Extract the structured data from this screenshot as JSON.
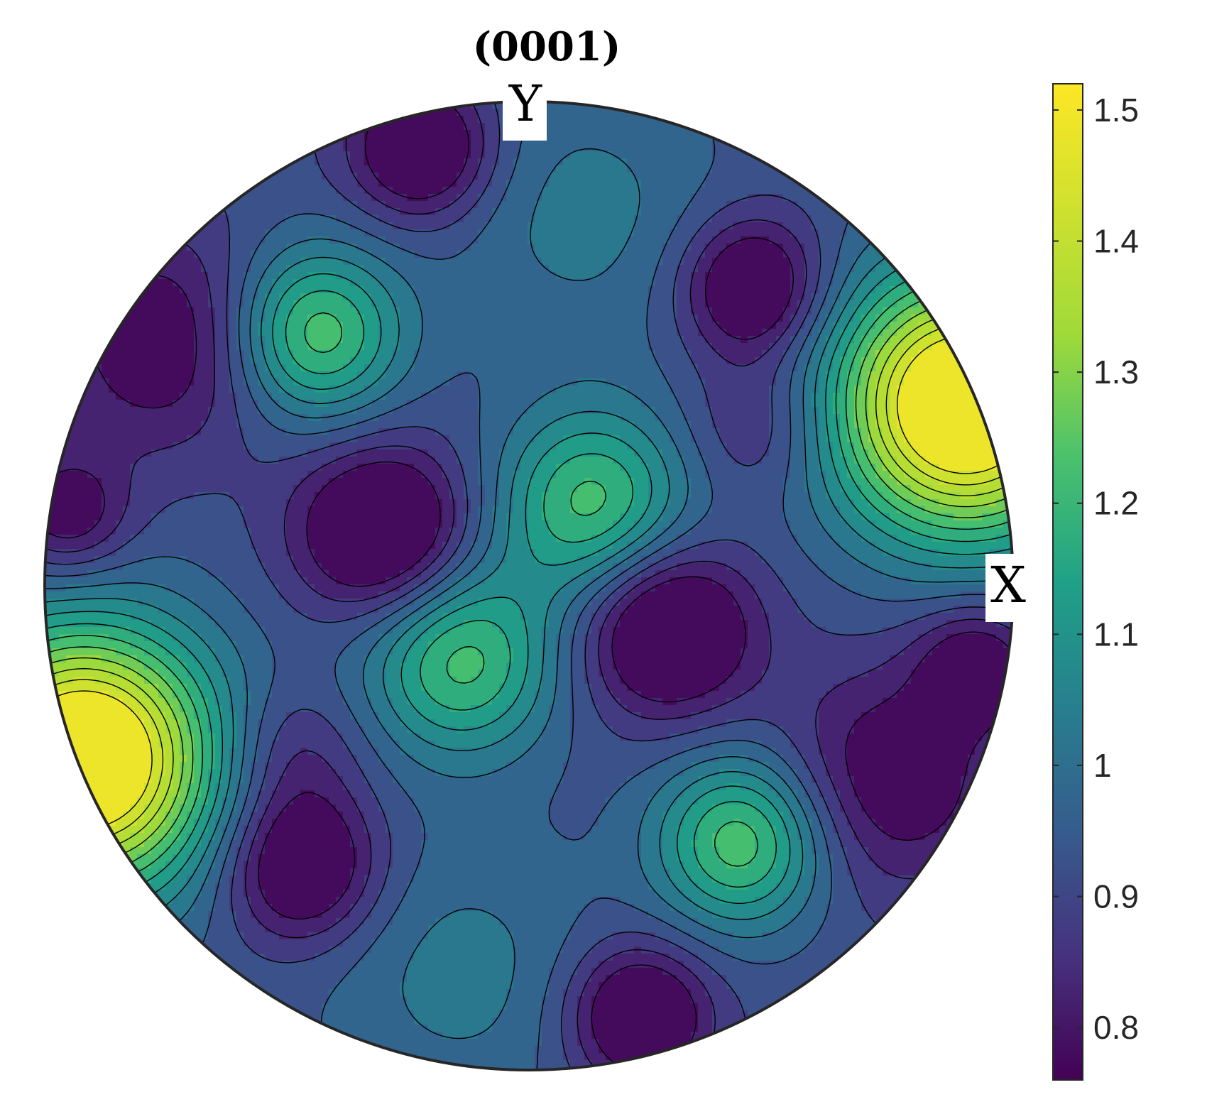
{
  "chart_data": {
    "type": "heatmap",
    "subtype": "pole-figure-contour",
    "title": "(0001)",
    "projection_labels": {
      "x": "X",
      "y": "Y"
    },
    "colormap": "viridis",
    "colorbar": {
      "position": "right",
      "range": [
        0.76,
        1.52
      ],
      "ticks": [
        0.8,
        0.9,
        1,
        1.1,
        1.2,
        1.3,
        1.4,
        1.5
      ],
      "tick_labels": [
        "0.8",
        "0.9",
        "1",
        "1.1",
        "1.2",
        "1.3",
        "1.4",
        "1.5"
      ]
    },
    "contour_levels": [
      0.8,
      0.85,
      0.9,
      0.95,
      1,
      1.05,
      1.1,
      1.15,
      1.2,
      1.25,
      1.3,
      1.35,
      1.4,
      1.45
    ],
    "grid": false,
    "min_regions": [
      {
        "location": "upper-left of top",
        "approx_value": 0.78
      },
      {
        "location": "upper-right",
        "approx_value": 0.78
      },
      {
        "location": "center-left",
        "approx_value": 0.78
      },
      {
        "location": "center-right",
        "approx_value": 0.78
      },
      {
        "location": "lower-left",
        "approx_value": 0.78
      },
      {
        "location": "bottom",
        "approx_value": 0.78
      }
    ],
    "max_regions": [
      {
        "location": "right rim",
        "approx_value": 1.48
      },
      {
        "location": "left rim",
        "approx_value": 1.48
      },
      {
        "location": "center",
        "approx_value": 1.22
      },
      {
        "location": "upper-left",
        "approx_value": 1.22
      },
      {
        "location": "lower-right",
        "approx_value": 1.22
      }
    ]
  }
}
